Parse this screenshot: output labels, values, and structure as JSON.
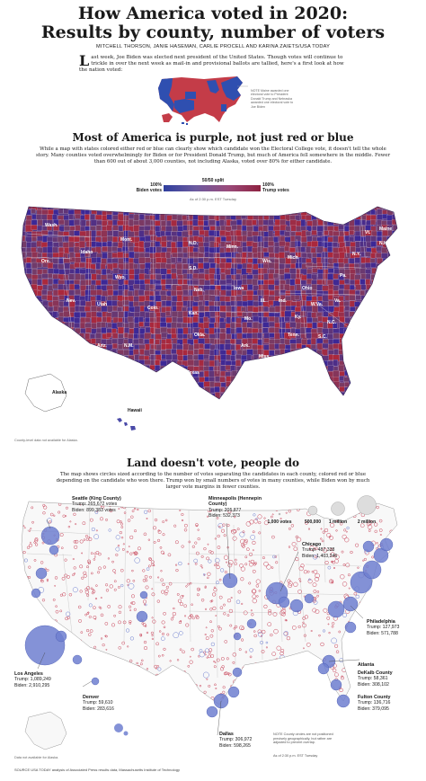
{
  "header": {
    "title_line1": "How America voted in 2020:",
    "title_line2": "Results by county, number of voters",
    "byline": "MITCHELL THORSON, JANIE HASEMAN, CARLIE PROCELL AND KARINA ZAIETS/USA TODAY",
    "intro_drop": "L",
    "intro": "ast week, Joe Biden was elected next president of the United States. Though votes will continue to trickle in over the next week as mail-in and provisional ballots are tallied, here's a first look at how the nation voted:",
    "ec_note": "NOTE Maine awarded one electoral vote to President Donald Trump and Nebraska awarded one electoral vote to Joe Biden"
  },
  "section1": {
    "heading": "Most of America is purple, not just red or blue",
    "paragraph": "While a map with states colored either red or blue can clearly show which candidate won the Electoral College vote, it doesn't tell the whole story. Many counties voted overwhelmingly for Biden or for President Donald Trump, but much of America fell somewhere in the middle. Fewer than 600 out of about 3,000 counties, not including Alaska, voted over 80% for either candidate.",
    "legend": {
      "split": "50/50 split",
      "left_pct": "100%",
      "left_label": "Biden votes",
      "right_pct": "100%",
      "right_label": "Trump votes"
    },
    "as_of": "As of 2:30 p.m. EST Tuesday",
    "note": "County-level data not available for Alaska.",
    "state_labels": [
      "Wash.",
      "Ore.",
      "Idaho",
      "Mont.",
      "Wyo.",
      "Nev.",
      "Calif.",
      "Utah",
      "Ariz.",
      "Colo.",
      "N.M.",
      "N.D.",
      "S.D.",
      "Neb.",
      "Kan.",
      "Okla.",
      "Texas",
      "Minn.",
      "Iowa",
      "Mo.",
      "Ark.",
      "La.",
      "Wis.",
      "Ill.",
      "Mich.",
      "Ind.",
      "Ohio",
      "Ky.",
      "Tenn.",
      "Miss.",
      "Ala.",
      "Ga.",
      "Fla.",
      "S.C.",
      "N.C.",
      "Va.",
      "W.Va.",
      "Pa.",
      "N.Y.",
      "Maine",
      "Vt.",
      "N.H.",
      "Mass.",
      "Conn.",
      "R.I.",
      "N.J.",
      "Del.",
      "Md.",
      "Alaska",
      "Hawaii"
    ]
  },
  "section2": {
    "heading": "Land doesn't vote, people do",
    "paragraph": "The map shows circles sized according to the number of votes separating the candidates in each county, colored red or blue depending on the candidate who won there. Trump won by small numbers of votes in many counties, while Biden won by much larger vote margins in fewer counties.",
    "size_legend": [
      "1,000 votes",
      "500,000",
      "1 million",
      "2 million"
    ],
    "annotations": [
      {
        "name": "Seattle (King County)",
        "trump": "Trump: 265,672 votes",
        "biden": "Biden: 899,383 votes"
      },
      {
        "name": "Minneapolis (Hennepin County)",
        "trump": "Trump: 205,877",
        "biden": "Biden: 532,373"
      },
      {
        "name": "Chicago",
        "trump": "Trump: 487,338",
        "biden": "Biden: 1,403,246"
      },
      {
        "name": "Philadelphia",
        "trump": "Trump: 127,973",
        "biden": "Biden: 571,788"
      },
      {
        "name": "Los Angeles",
        "trump": "Trump: 1,089,249",
        "biden": "Biden: 2,910,295"
      },
      {
        "name": "Denver",
        "trump": "Trump: 59,610",
        "biden": "Biden: 283,616"
      },
      {
        "name": "Atlanta",
        "trump": "",
        "biden": ""
      },
      {
        "name": "DeKalb County",
        "trump": "Trump: 58,361",
        "biden": "Biden: 308,102"
      },
      {
        "name": "Fulton County",
        "trump": "Trump: 136,716",
        "biden": "Biden: 379,095"
      },
      {
        "name": "Dallas",
        "trump": "Trump: 306,972",
        "biden": "Biden: 598,265"
      }
    ],
    "circle_note": "NOTE County circles are not positioned precisely geographically, but rather are adjusted to prevent overlap.",
    "as_of": "As of 2:30 p.m. EST Tuesday",
    "note": "Data not available for Alaska."
  },
  "source": "SOURCE USA TODAY analysis of Associated Press results data, Massachusetts Institute of Technology",
  "colors": {
    "biden": "#2f3f9e",
    "trump": "#8e2240",
    "biden_circle": "#6e7fd0",
    "trump_circle": "#c8455a",
    "purple": "#6a4a8e"
  }
}
